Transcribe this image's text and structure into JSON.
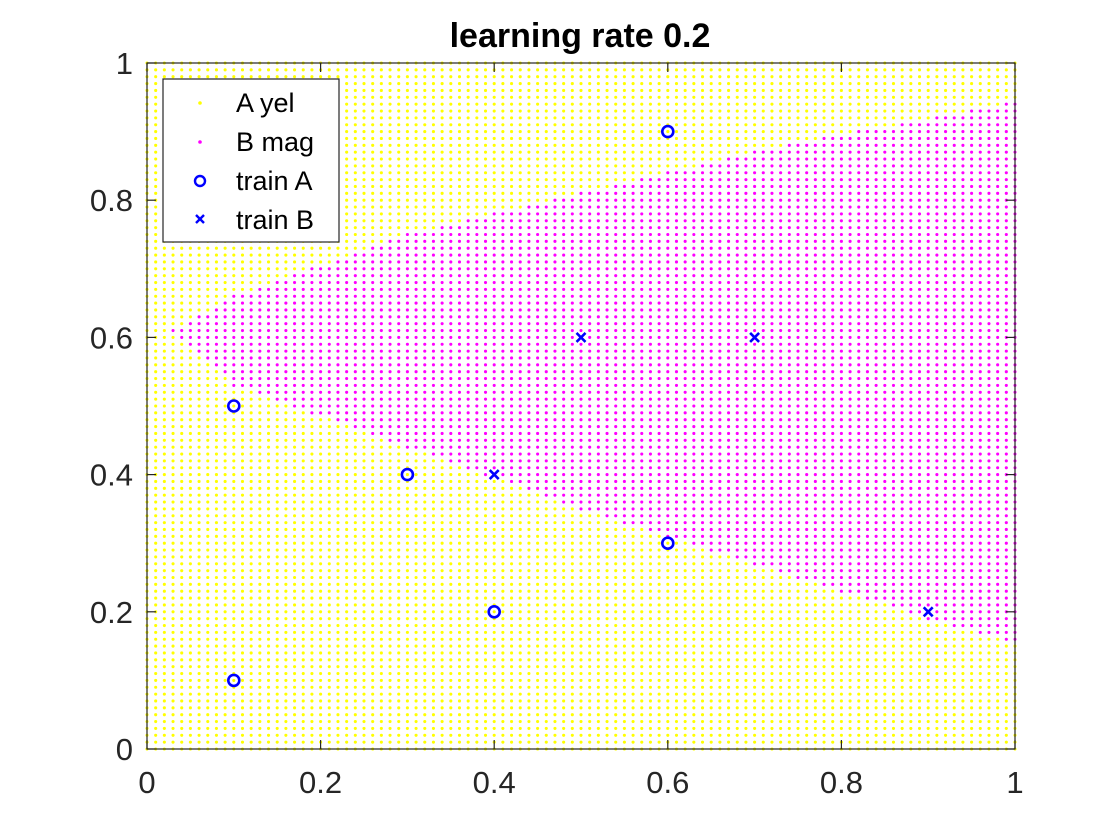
{
  "chart_data": {
    "type": "scatter",
    "title": "learning rate 0.2",
    "xlabel": "",
    "ylabel": "",
    "xlim": [
      0,
      1
    ],
    "ylim": [
      0,
      1
    ],
    "xticks": [
      "0",
      "0.2",
      "0.4",
      "0.6",
      "0.8",
      "1"
    ],
    "yticks": [
      "0",
      "0.2",
      "0.4",
      "0.6",
      "0.8",
      "1"
    ],
    "grid": false,
    "legend_position": "top-left",
    "legend": [
      {
        "label": "A yel",
        "marker": "dot",
        "color": "#ffff00"
      },
      {
        "label": "B mag",
        "marker": "dot",
        "color": "#ff00ff"
      },
      {
        "label": "train A",
        "marker": "circle",
        "color": "#0000ff"
      },
      {
        "label": "train B",
        "marker": "x",
        "color": "#0000ff"
      }
    ],
    "decision_grid": {
      "step": 0.01,
      "class_A_color": "#ffff00",
      "class_B_color": "#ff00ff",
      "region_B_apex": [
        0.03,
        0.61
      ],
      "region_B_upper_boundary": [
        [
          0.03,
          0.61
        ],
        [
          0.1,
          0.66
        ],
        [
          0.3,
          0.75
        ],
        [
          0.5,
          0.81
        ],
        [
          0.7,
          0.87
        ],
        [
          1.0,
          0.945
        ]
      ],
      "region_B_lower_boundary": [
        [
          0.03,
          0.61
        ],
        [
          0.1,
          0.53
        ],
        [
          0.3,
          0.44
        ],
        [
          0.5,
          0.35
        ],
        [
          0.7,
          0.27
        ],
        [
          0.9,
          0.19
        ],
        [
          1.0,
          0.155
        ]
      ]
    },
    "series": [
      {
        "name": "train A",
        "marker": "circle",
        "color": "#0000ff",
        "points": [
          [
            0.1,
            0.1
          ],
          [
            0.1,
            0.5
          ],
          [
            0.3,
            0.4
          ],
          [
            0.4,
            0.2
          ],
          [
            0.6,
            0.3
          ],
          [
            0.6,
            0.9
          ]
        ]
      },
      {
        "name": "train B",
        "marker": "x",
        "color": "#0000ff",
        "points": [
          [
            0.4,
            0.4
          ],
          [
            0.5,
            0.6
          ],
          [
            0.7,
            0.6
          ],
          [
            0.9,
            0.2
          ]
        ]
      }
    ]
  }
}
